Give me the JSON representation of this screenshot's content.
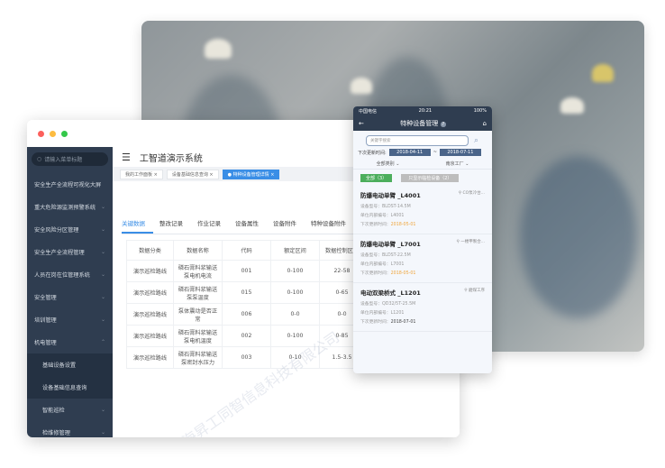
{
  "colors": {
    "sidebar": "#2f3d50",
    "accent": "#3a8ee6",
    "green": "#4cae5c",
    "orange": "#f0a53a"
  },
  "desktop": {
    "title": "工智道演示系统",
    "search_placeholder": "请输入菜单标题",
    "menu": [
      {
        "label": "安全生产全流程可视化大屏",
        "chevron": false
      },
      {
        "label": "重大危险源监测预警系统",
        "chevron": true
      },
      {
        "label": "安全风险分区管理",
        "chevron": true
      },
      {
        "label": "安全生产全流程管理",
        "chevron": true
      },
      {
        "label": "人员在岗在位管理系统",
        "chevron": true
      },
      {
        "label": "安全管理",
        "chevron": true
      },
      {
        "label": "培训管理",
        "chevron": true
      },
      {
        "label": "机电管理",
        "chevron": true,
        "expanded": true
      }
    ],
    "submenu": [
      "基础设备设置",
      "设备基础信息查询"
    ],
    "menu_after": [
      {
        "label": "智能巡检"
      },
      {
        "label": "检维修管理"
      }
    ],
    "tags": [
      {
        "label": "我的工作面板",
        "active": false
      },
      {
        "label": "设备基础信息查询",
        "active": false
      },
      {
        "label": "特种设备管理详情",
        "active": true
      }
    ],
    "tabs": [
      "关键数据",
      "整改记录",
      "作业记录",
      "设备属性",
      "设备附件",
      "特种设备附件"
    ],
    "active_tab": 0,
    "table": {
      "headers": [
        "数据分类",
        "数据名称",
        "代码",
        "额定区间",
        "数据控制区间"
      ],
      "rows": [
        [
          "演示巡检路线",
          "磷石膏料浆输送泵电机电流",
          "001",
          "0-100",
          "22-58"
        ],
        [
          "演示巡检路线",
          "磷石膏料浆输送泵泵温度",
          "015",
          "0-100",
          "0-65"
        ],
        [
          "演示巡检路线",
          "泵体震动是否正常",
          "006",
          "0-0",
          "0-0"
        ],
        [
          "演示巡检路线",
          "磷石膏料浆输送泵电机温度",
          "002",
          "0-100",
          "0-85"
        ],
        [
          "演示巡检路线",
          "磷石膏料浆输送泵密封水压力",
          "003",
          "0-10",
          "1.5-3.5"
        ]
      ]
    },
    "watermark": "上海昇工同智信息科技有限公司"
  },
  "mobile": {
    "carrier": "中国电信",
    "time": "20:21",
    "battery": "100%",
    "title": "特种设备管理",
    "badge": "?",
    "search_placeholder": "关键字搜索",
    "date_label": "下次更新时间:",
    "date_from": "2018-04-11",
    "date_sep": "~",
    "date_to": "2018-07-11",
    "filter1": "全部类别",
    "filter2": "南京工厂",
    "btn_all": "全部（3）",
    "btn_temp": "只显示临检设备（2）",
    "cards": [
      {
        "name": "防爆电动单臂 _L4001",
        "loc": "CO泵冷台...",
        "model": "设备型号：BLDST-14.5M",
        "code": "单位内部编号：L4001",
        "next_label": "下次更新时间：",
        "next": "2018-05-01",
        "overdue": true
      },
      {
        "name": "防爆电动单臂 _L7001",
        "loc": "一楼甲製合...",
        "model": "设备型号：BLDST-22.5M",
        "code": "单位内部编号：L7001",
        "next_label": "下次更新时间：",
        "next": "2018-05-01",
        "overdue": true
      },
      {
        "name": "电动双梁桥式 _L1201",
        "loc": "磨煤工序",
        "model": "设备型号：QD32/5T-25.5M",
        "code": "单位内部编号：L1201",
        "next_label": "下次更新时间：",
        "next": "2018-07-01",
        "overdue": false
      }
    ]
  }
}
